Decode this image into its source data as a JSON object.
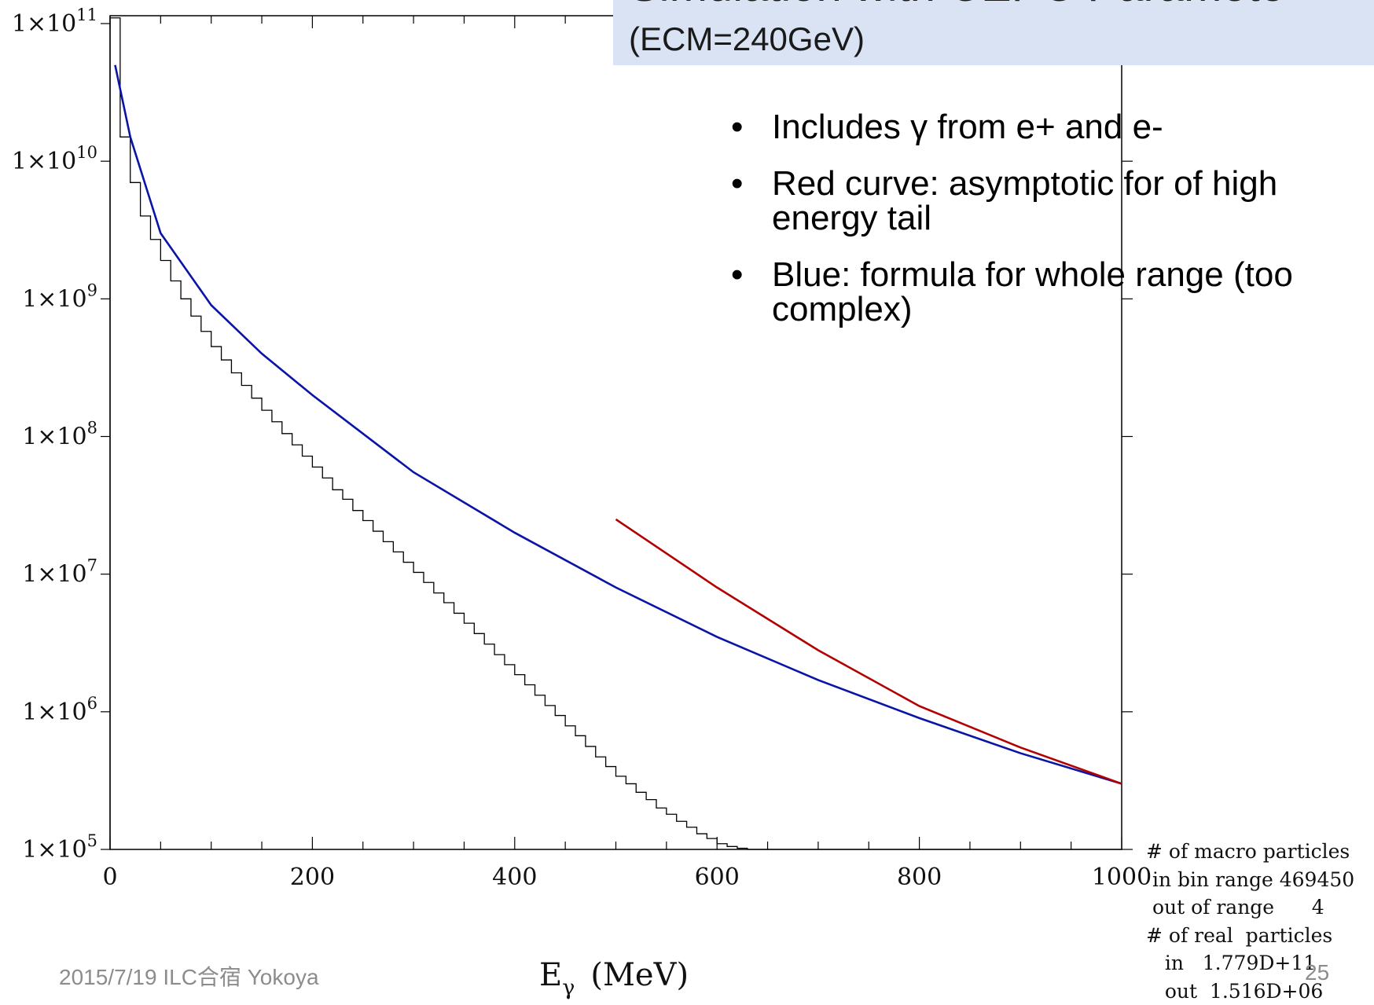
{
  "slide": {
    "title": "Simulation with CEPC Paramete",
    "subtitle": "(ECM=240GeV)",
    "bullets": [
      "Includes γ from e+ and e-",
      "Red curve: asymptotic for of high energy tail",
      "Blue: formula for whole range (too complex)"
    ],
    "footer": "2015/7/19 ILC合宿 Yokoya",
    "page_number": "25"
  },
  "stats_box": {
    "lines": [
      "# of macro particles",
      " in bin range 469450",
      " out of range      4",
      "# of real  particles",
      "   in   1.779D+11",
      "   out  1.516D+06"
    ]
  },
  "colors": {
    "histogram": "#000000",
    "red_curve": "#b30000",
    "blue_curve": "#0a14a6",
    "banner": "#dae3f3"
  },
  "chart_data": {
    "type": "line",
    "title": "",
    "xlabel": "E_γ (MeV)",
    "ylabel": "",
    "xlim": [
      0,
      1000
    ],
    "ylim": [
      100000,
      100000000000
    ],
    "yscale": "log",
    "x_ticks": [
      "0",
      "200",
      "400",
      "600",
      "800",
      "1000"
    ],
    "y_ticks": [
      "1×10^11",
      "1×10^10",
      "1×10^9",
      "1×10^8",
      "1×10^7",
      "1×10^6",
      "1×10^5"
    ],
    "grid": false,
    "legend": "none",
    "series": [
      {
        "style": "histogram",
        "bin_width": 10,
        "bin_start": 0,
        "values": [
          110000000000.0,
          15000000000.0,
          7000000000.0,
          4000000000.0,
          2700000000.0,
          1900000000.0,
          1350000000.0,
          1000000000.0,
          750000000.0,
          580000000.0,
          450000000.0,
          360000000.0,
          290000000.0,
          235000000.0,
          190000000.0,
          155000000.0,
          128000000.0,
          105000000.0,
          87000000.0,
          72000000.0,
          60000000.0,
          50000000.0,
          41000000.0,
          35000000.0,
          29000000.0,
          24500000.0,
          20500000.0,
          17200000.0,
          14500000.0,
          12200000.0,
          10300000.0,
          8700000.0,
          7300000.0,
          6200000.0,
          5200000.0,
          4400000.0,
          3700000.0,
          3100000.0,
          2600000.0,
          2200000.0,
          1860000.0,
          1570000.0,
          1320000.0,
          1110000.0,
          940000.0,
          790000.0,
          670000.0,
          560000.0,
          470000.0,
          400000.0,
          340000.0,
          300000.0,
          260000.0,
          230000.0,
          200000.0,
          180000.0,
          160000.0,
          145000.0,
          130000.0,
          120000.0,
          110000.0,
          105000.0,
          102000.0,
          100000.0,
          100000.0,
          100000.0,
          100000.0,
          100000.0,
          100000.0,
          100000.0,
          100000.0,
          100000.0,
          100000.0,
          100000.0,
          100000.0,
          100000.0,
          100000.0,
          100000.0,
          100000.0,
          100000.0,
          100000.0,
          100000.0,
          100000.0,
          100000.0,
          100000.0,
          100000.0,
          100000.0,
          100000.0,
          100000.0,
          100000.0,
          100000.0,
          100000.0,
          100000.0,
          100000.0,
          100000.0,
          100000.0,
          100000.0,
          100000.0,
          100000.0,
          100000.0
        ]
      },
      {
        "style": "line",
        "color": "blue",
        "x": [
          5,
          20,
          50,
          100,
          150,
          200,
          300,
          400,
          500,
          600,
          700,
          800,
          900,
          1000
        ],
        "y": [
          50000000000.0,
          15000000000.0,
          3000000000.0,
          900000000.0,
          400000000.0,
          200000000.0,
          55000000.0,
          20000000.0,
          8000000.0,
          3500000.0,
          1700000.0,
          900000.0,
          500000.0,
          300000.0
        ]
      },
      {
        "style": "line",
        "color": "red",
        "x": [
          500,
          600,
          700,
          800,
          900,
          1000
        ],
        "y": [
          25000000.0,
          8000000.0,
          2800000.0,
          1100000.0,
          550000.0,
          300000.0
        ]
      }
    ]
  }
}
